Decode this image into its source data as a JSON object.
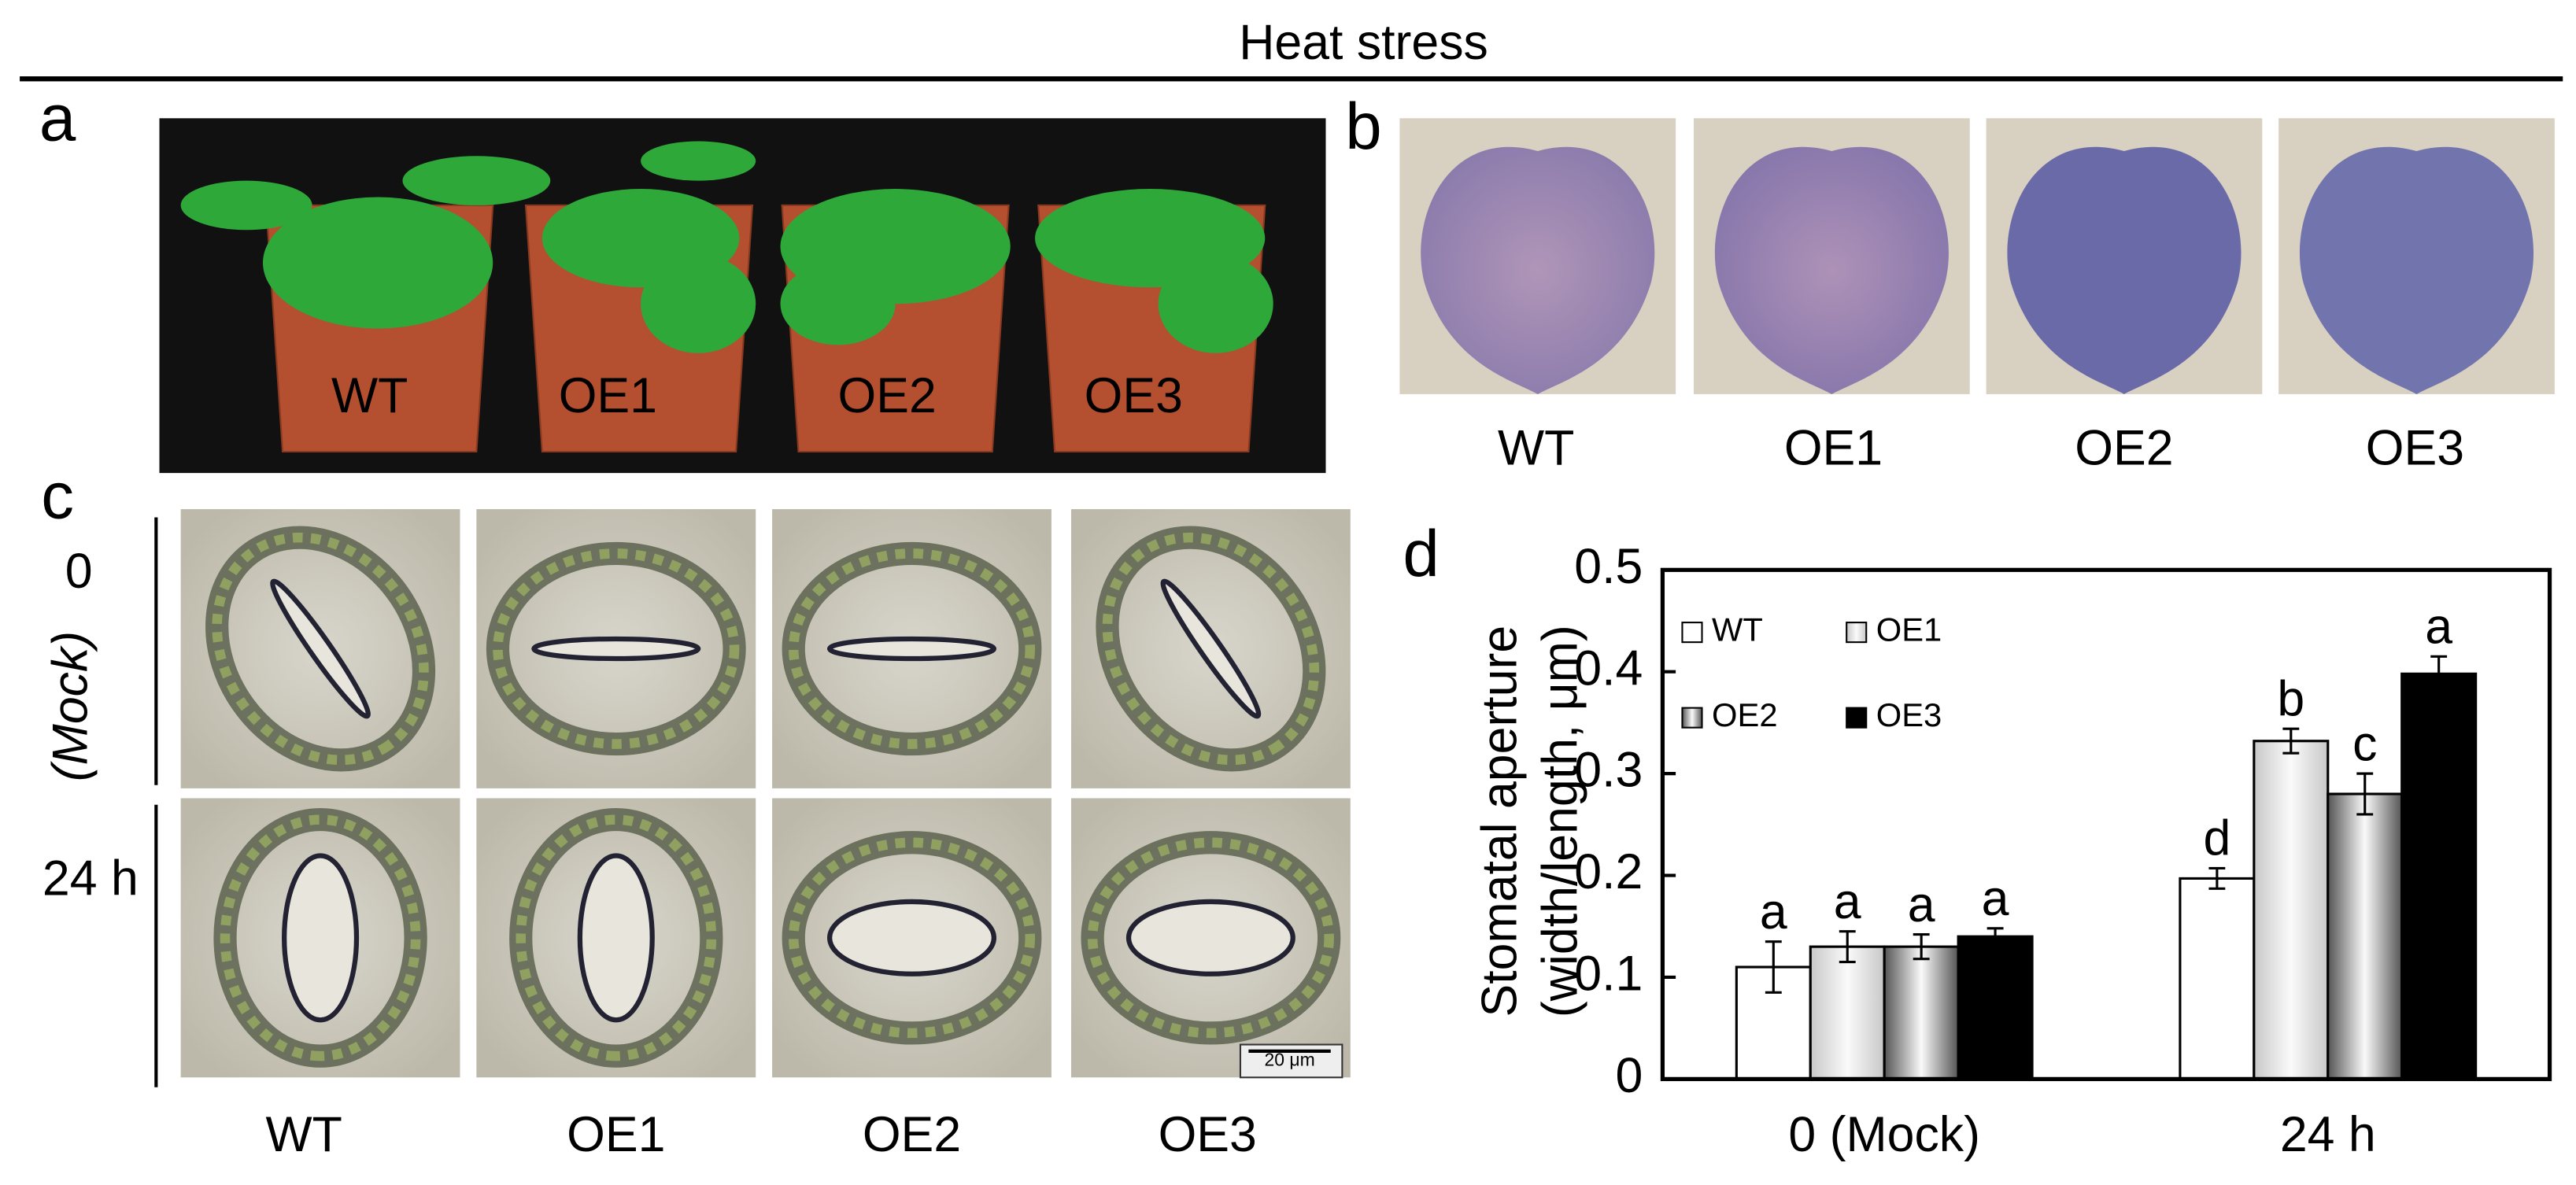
{
  "title": "Heat stress",
  "panel_a": {
    "label": "a",
    "pot_labels": [
      "WT",
      "OE1",
      "OE2",
      "OE3"
    ]
  },
  "panel_b": {
    "label": "b",
    "leaf_labels": [
      "WT",
      "OE1",
      "OE2",
      "OE3"
    ]
  },
  "panel_c": {
    "label": "c",
    "row_labels": [
      "0",
      "(Mock)",
      "24 h"
    ],
    "column_labels": [
      "WT",
      "OE1",
      "OE2",
      "OE3"
    ],
    "scale_bar": "20 μm"
  },
  "chart_data": {
    "type": "bar",
    "panel_label": "d",
    "ylabel": [
      "Stomatal aperture",
      "(width/length, μm)"
    ],
    "categories": [
      "0 (Mock)",
      "24 h"
    ],
    "series": [
      {
        "name": "WT",
        "color": "#ffffff",
        "fill_style": "solid",
        "values": [
          0.11,
          0.197
        ],
        "errors": [
          0.025,
          0.01
        ],
        "significance_letters": [
          "a",
          "d"
        ]
      },
      {
        "name": "OE1",
        "color": "#c8c8c8",
        "fill_style": "gradient",
        "values": [
          0.13,
          0.332
        ],
        "errors": [
          0.015,
          0.012
        ],
        "significance_letters": [
          "a",
          "b"
        ]
      },
      {
        "name": "OE2",
        "color": "#555555",
        "fill_style": "gradient",
        "values": [
          0.13,
          0.28
        ],
        "errors": [
          0.012,
          0.02
        ],
        "significance_letters": [
          "a",
          "c"
        ]
      },
      {
        "name": "OE3",
        "color": "#000000",
        "fill_style": "solid",
        "values": [
          0.14,
          0.398
        ],
        "errors": [
          0.008,
          0.017
        ],
        "significance_letters": [
          "a",
          "a"
        ]
      }
    ],
    "ylim": [
      0,
      0.5
    ],
    "yticks": [
      0,
      0.1,
      0.2,
      0.3,
      0.4,
      0.5
    ],
    "grid": false,
    "legend": "upper left"
  }
}
